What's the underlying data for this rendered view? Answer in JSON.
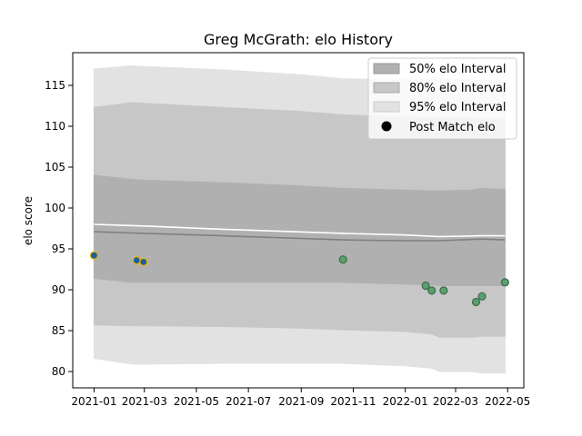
{
  "chart_data": {
    "type": "line",
    "title": "Greg McGrath: elo History",
    "xlabel": "",
    "ylabel": "elo score",
    "x_ticks": [
      "2021-01",
      "2021-03",
      "2021-05",
      "2021-07",
      "2021-09",
      "2021-11",
      "2022-01",
      "2022-03",
      "2022-05"
    ],
    "y_ticks": [
      80,
      85,
      90,
      95,
      100,
      105,
      110,
      115
    ],
    "xlim": [
      "2020-12-07",
      "2022-05-20"
    ],
    "ylim": [
      78,
      119
    ],
    "grid": false,
    "legend_position": "top-right",
    "legend": [
      "50% elo Interval",
      "80% elo Interval",
      "95% elo Interval",
      "Post Match elo"
    ],
    "band_x": [
      "2021-01-01",
      "2021-02-15",
      "2021-03-01",
      "2021-06-01",
      "2021-09-01",
      "2021-10-20",
      "2022-01-01",
      "2022-02-01",
      "2022-02-10",
      "2022-03-20",
      "2022-03-31",
      "2022-04-15",
      "2022-04-28"
    ],
    "interval_95": {
      "upper": [
        117.0,
        117.4,
        117.3,
        116.9,
        116.3,
        115.8,
        115.7,
        115.7,
        115.7,
        115.7,
        115.6,
        115.6,
        115.6
      ],
      "lower": [
        81.6,
        80.9,
        80.9,
        81.0,
        81.0,
        81.0,
        80.7,
        80.4,
        80.0,
        80.0,
        79.8,
        79.8,
        79.8
      ]
    },
    "interval_80": {
      "upper": [
        112.3,
        112.9,
        112.8,
        112.3,
        111.8,
        111.4,
        111.1,
        111.0,
        111.0,
        111.0,
        110.9,
        110.9,
        110.9
      ],
      "lower": [
        85.7,
        85.6,
        85.6,
        85.5,
        85.3,
        85.1,
        84.9,
        84.6,
        84.2,
        84.2,
        84.3,
        84.3,
        84.3
      ]
    },
    "interval_50": {
      "upper": [
        104.0,
        103.5,
        103.4,
        103.1,
        102.7,
        102.4,
        102.2,
        102.1,
        102.1,
        102.2,
        102.4,
        102.3,
        102.3
      ],
      "lower": [
        91.4,
        90.9,
        90.9,
        90.9,
        90.9,
        90.9,
        90.7,
        90.6,
        90.5,
        90.5,
        90.5,
        90.5,
        90.5
      ]
    },
    "mean_line": {
      "x": [
        "2021-01-01",
        "2021-03-01",
        "2021-06-01",
        "2021-10-20",
        "2022-01-01",
        "2022-02-10",
        "2022-03-31",
        "2022-04-28"
      ],
      "y": [
        97.1,
        96.9,
        96.6,
        96.1,
        96.0,
        96.0,
        96.2,
        96.1
      ]
    },
    "white_line": {
      "x": [
        "2021-01-01",
        "2021-03-01",
        "2021-06-01",
        "2021-10-20",
        "2022-01-01",
        "2022-02-10",
        "2022-03-31",
        "2022-04-28"
      ],
      "y": [
        98.0,
        97.8,
        97.4,
        96.9,
        96.7,
        96.5,
        96.6,
        96.6
      ]
    },
    "series": [
      {
        "name": "Post Match elo",
        "x": [
          "2021-01-01",
          "2021-02-20",
          "2021-02-28"
        ],
        "y": [
          94.2,
          93.6,
          93.4
        ],
        "color": "#1f5f99",
        "edge": "#e8b400"
      },
      {
        "name": "Post Match elo",
        "x": [
          "2021-10-20",
          "2022-01-25",
          "2022-02-01",
          "2022-02-15",
          "2022-03-25",
          "2022-04-01",
          "2022-04-28"
        ],
        "y": [
          93.7,
          90.5,
          89.9,
          89.9,
          88.5,
          89.2,
          90.9
        ],
        "color": "#5a9f6e",
        "edge": "#3c6e4a"
      }
    ],
    "colors": {
      "band_50": "#b0b0b0",
      "band_80": "#c7c7c7",
      "band_95": "#e2e2e2",
      "mean": "#808080",
      "white": "#ffffff",
      "legend_marker": "#000000"
    }
  }
}
